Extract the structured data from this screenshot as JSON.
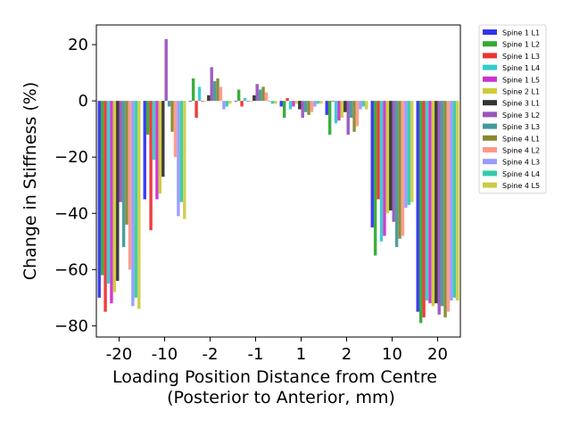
{
  "chart_data": {
    "type": "bar",
    "xlabel": "Loading Position Distance from Centre",
    "xlabel_line2": "(Posterior to Anterior, mm)",
    "ylabel": "Change in Stiffness (%)",
    "ylim": [
      -84,
      27
    ],
    "yticks": [
      20,
      0,
      -20,
      -40,
      -60,
      -80
    ],
    "ytick_labels": [
      "20",
      "0",
      "−20",
      "−40",
      "−60",
      "−80"
    ],
    "categories": [
      "-20",
      "-10",
      "-2",
      "-1",
      "1",
      "2",
      "10",
      "20"
    ],
    "legend_placement": "outside top-right",
    "grid": false,
    "series": [
      {
        "name": "Spine 1 L1",
        "color": "#3333ee",
        "values": [
          -70,
          -35,
          0,
          0,
          -2,
          -5,
          -45,
          -75
        ]
      },
      {
        "name": "Spine 1 L2",
        "color": "#33aa33",
        "values": [
          -62,
          -12,
          8,
          4,
          -6,
          -12,
          -55,
          -79
        ]
      },
      {
        "name": "Spine 1 L3",
        "color": "#ee3333",
        "values": [
          -75,
          -46,
          -6,
          -2,
          1,
          0,
          -35,
          -77
        ]
      },
      {
        "name": "Spine 1 L4",
        "color": "#33cccc",
        "values": [
          -65,
          -21,
          5,
          1,
          -3,
          -8,
          -50,
          -71
        ]
      },
      {
        "name": "Spine 1 L5",
        "color": "#cc33cc",
        "values": [
          -72,
          -35,
          0,
          0,
          -2,
          -7,
          -48,
          -72
        ]
      },
      {
        "name": "Spine 2 L1",
        "color": "#cccc33",
        "values": [
          -68,
          -33,
          0,
          0,
          -1,
          -6,
          -40,
          -73
        ]
      },
      {
        "name": "Spine 3 L1",
        "color": "#333333",
        "values": [
          -64,
          -27,
          2,
          2,
          -3,
          -4,
          -39,
          -72
        ]
      },
      {
        "name": "Spine 3 L2",
        "color": "#9955bb",
        "values": [
          -36,
          22,
          12,
          6,
          -6,
          -12,
          -43,
          -76
        ]
      },
      {
        "name": "Spine 3 L3",
        "color": "#449999",
        "values": [
          -52,
          -2,
          7,
          4,
          -4,
          -6,
          -52,
          -73
        ]
      },
      {
        "name": "Spine 4 L1",
        "color": "#888833",
        "values": [
          -44,
          -11,
          8,
          5,
          -5,
          -11,
          -49,
          -77
        ]
      },
      {
        "name": "Spine 4 L2",
        "color": "#ff9988",
        "values": [
          -60,
          -20,
          5,
          3,
          -4,
          -9,
          -48,
          -75
        ]
      },
      {
        "name": "Spine 4 L3",
        "color": "#9999ff",
        "values": [
          -73,
          -41,
          -3,
          0,
          -2,
          -3,
          -38,
          -71
        ]
      },
      {
        "name": "Spine 4 L4",
        "color": "#33ccaa",
        "values": [
          -70,
          -36,
          -2,
          -1,
          -1,
          -2,
          -37,
          -70
        ]
      },
      {
        "name": "Spine 4 L5",
        "color": "#cccc44",
        "values": [
          -74,
          -42,
          -1,
          -1,
          -1,
          -3,
          -36,
          -71
        ]
      }
    ]
  }
}
